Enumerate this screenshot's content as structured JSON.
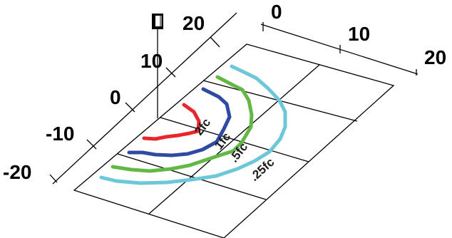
{
  "left_axis": {
    "labels": [
      "20",
      "10",
      "0",
      "-10",
      "-20"
    ]
  },
  "right_axis": {
    "labels": [
      "0",
      "10",
      "20"
    ]
  },
  "contours": [
    {
      "label": "2fc",
      "color": "#e8262c"
    },
    {
      "label": "1fc",
      "color": "#2e4aa3"
    },
    {
      "label": ".5fc",
      "color": "#63b845"
    },
    {
      "label": ".25fc",
      "color": "#6cc8d9"
    }
  ],
  "grid_color": "#000000",
  "luminaire_icon": "light-fixture-icon"
}
